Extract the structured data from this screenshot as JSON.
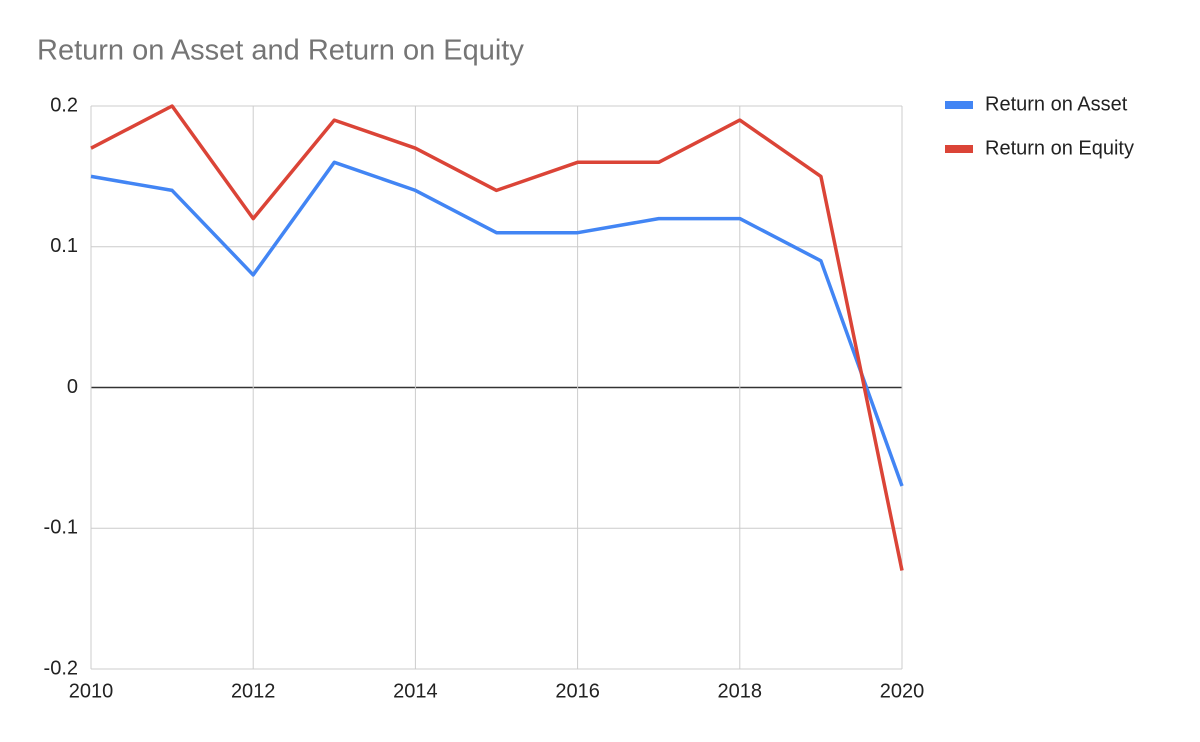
{
  "chart_data": {
    "type": "line",
    "title": "Return on Asset and Return on Equity",
    "x": [
      2010,
      2011,
      2012,
      2013,
      2014,
      2015,
      2016,
      2017,
      2018,
      2019,
      2020
    ],
    "series": [
      {
        "name": "Return on Asset",
        "color": "#4285f4",
        "values": [
          0.15,
          0.14,
          0.08,
          0.16,
          0.14,
          0.11,
          0.11,
          0.12,
          0.12,
          0.09,
          -0.07
        ]
      },
      {
        "name": "Return on Equity",
        "color": "#db4437",
        "values": [
          0.17,
          0.2,
          0.12,
          0.19,
          0.17,
          0.14,
          0.16,
          0.16,
          0.19,
          0.15,
          -0.13
        ]
      }
    ],
    "xlim": [
      2010,
      2020
    ],
    "xticks": [
      2010,
      2012,
      2014,
      2016,
      2018,
      2020
    ],
    "ylim": [
      -0.2,
      0.2
    ],
    "yticks": [
      -0.2,
      -0.1,
      0,
      0.1,
      0.2
    ],
    "grid": true,
    "legend": "right"
  }
}
